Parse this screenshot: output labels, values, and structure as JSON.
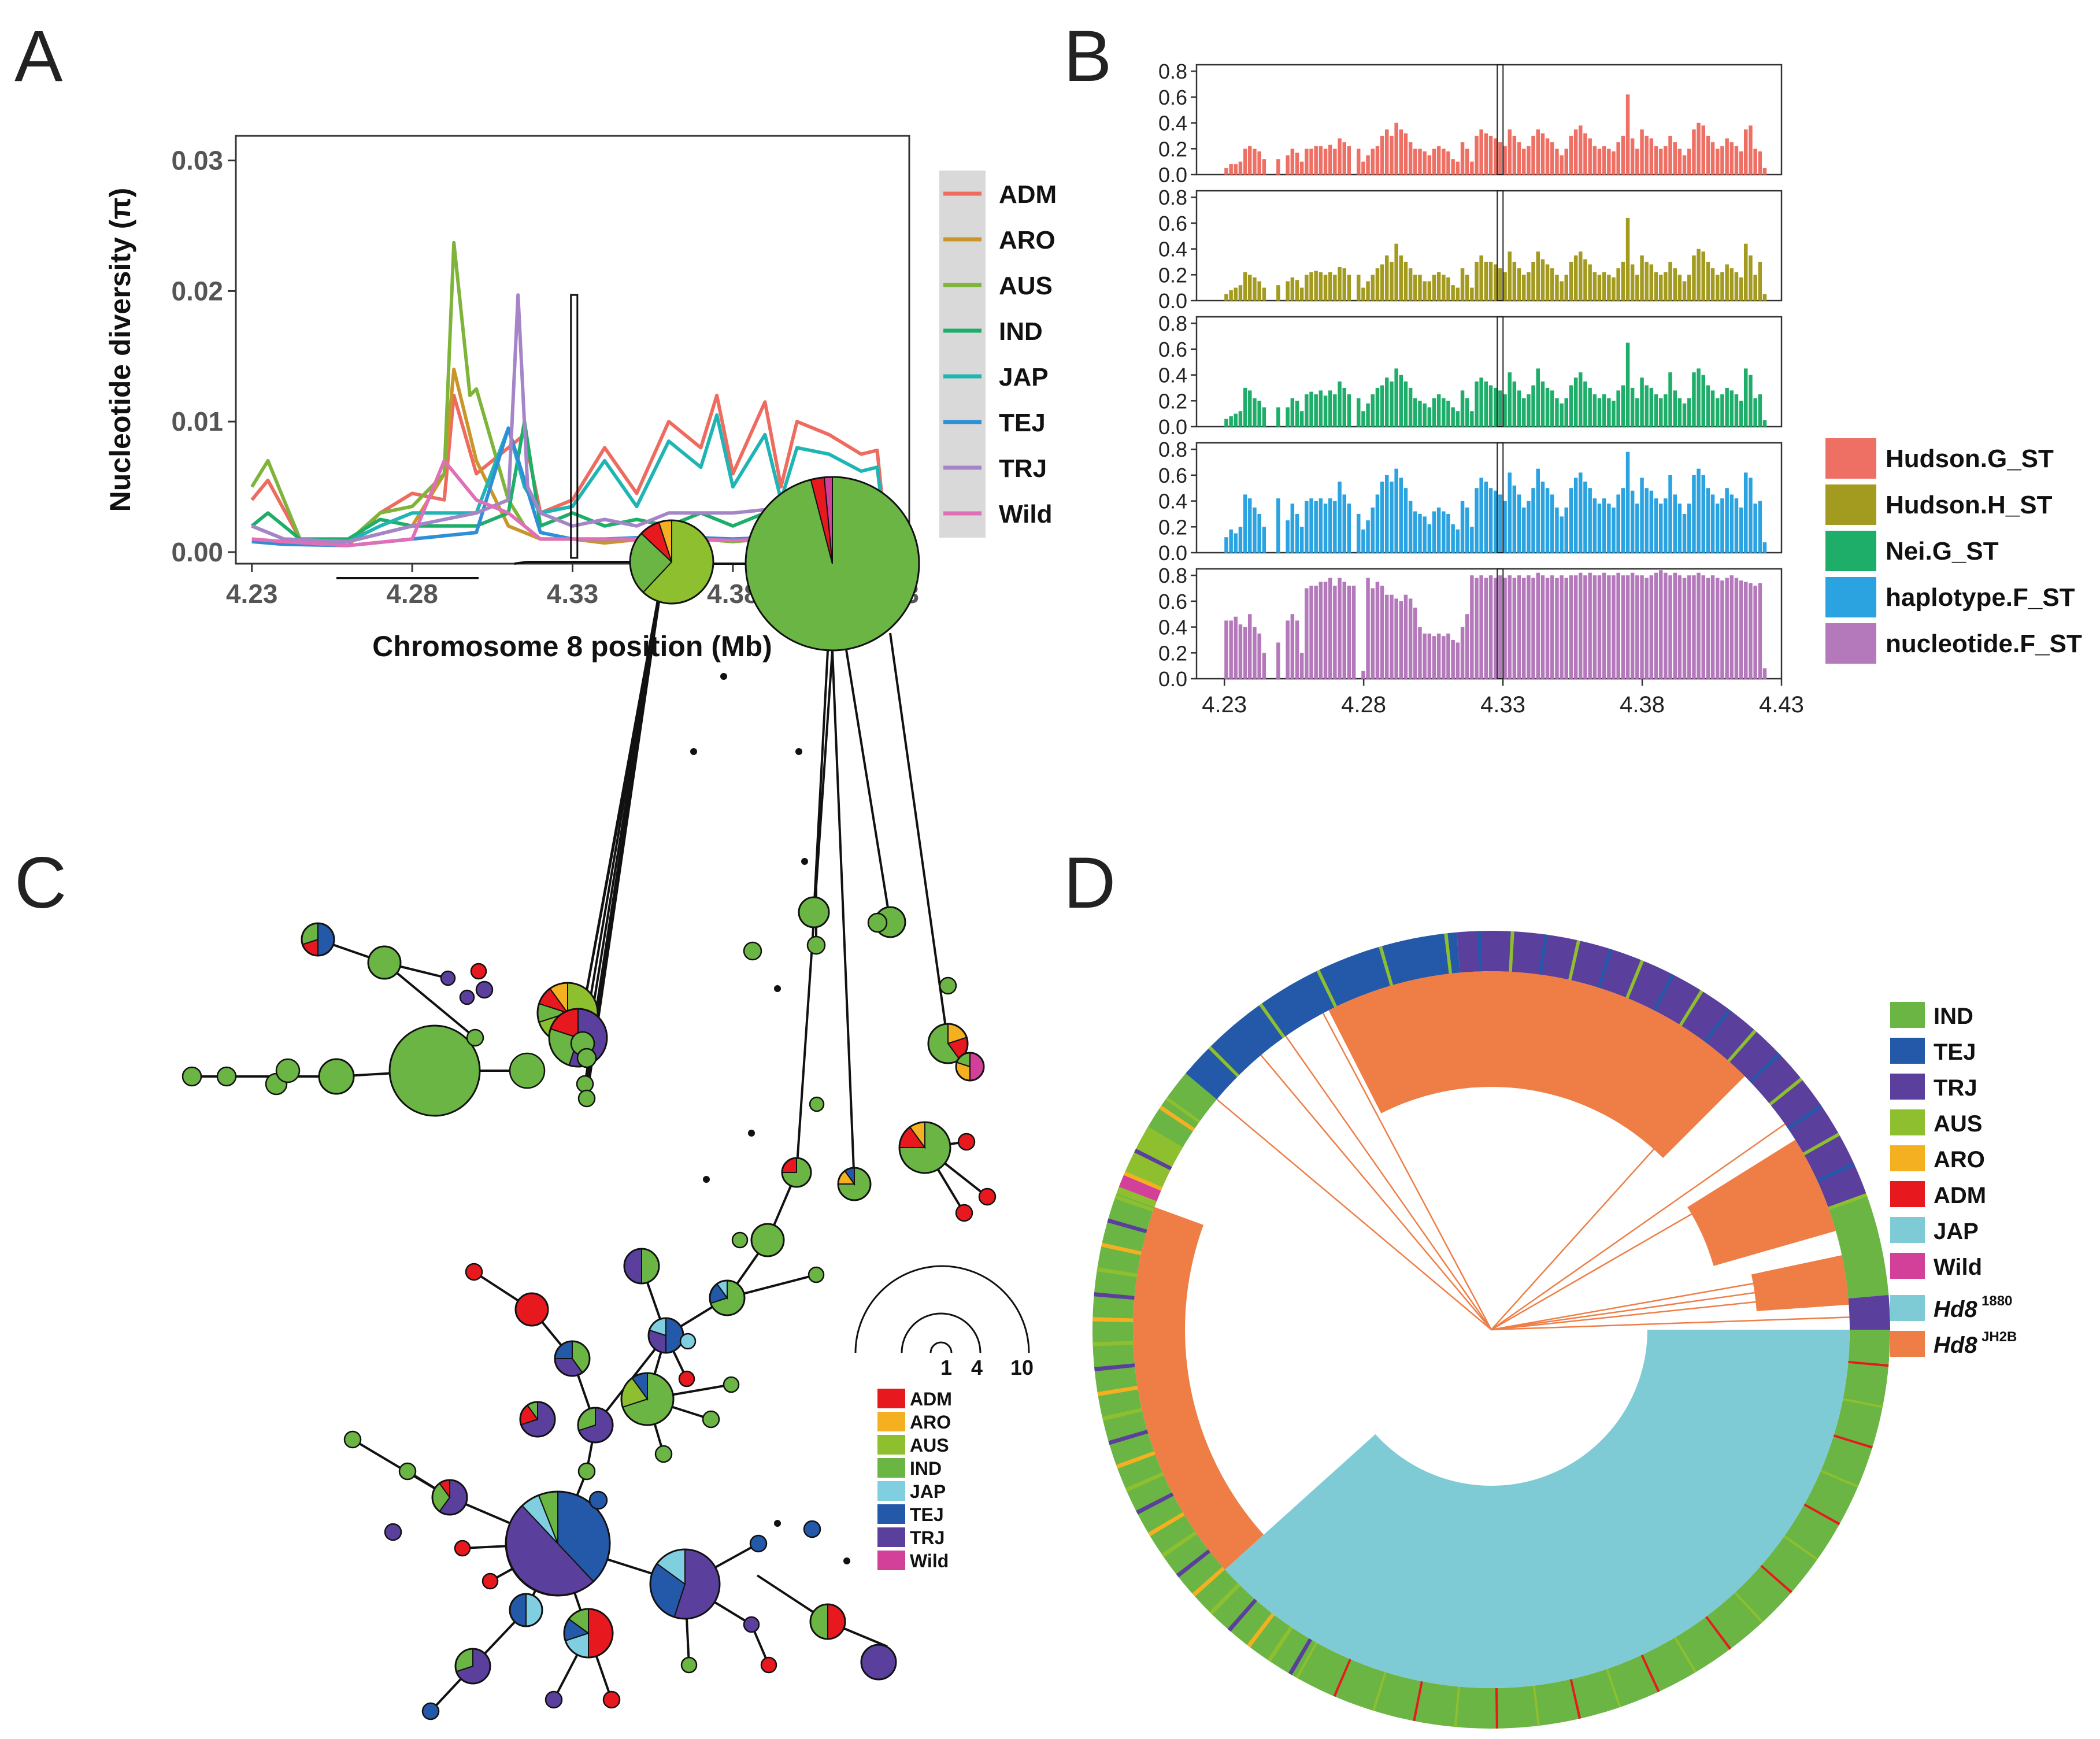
{
  "panels": {
    "a": {
      "letter": "A"
    },
    "b": {
      "letter": "B"
    },
    "c": {
      "letter": "C"
    },
    "d": {
      "letter": "D"
    }
  },
  "colors": {
    "ADM": "#ee6b5f",
    "ARO": "#c9962a",
    "AUS": "#7fb43a",
    "IND": "#1fae6a",
    "JAP": "#1fb5b5",
    "TEJ": "#2f8fd6",
    "TRJ": "#a585c8",
    "Wild": "#df6fb6",
    "netADM": "#e8191e",
    "netARO": "#f5b022",
    "netAUS": "#8dbf2f",
    "netIND": "#6bb544",
    "netJAP": "#7fcfe0",
    "netTEJ": "#2458a8",
    "netTRJ": "#5b3f9c",
    "netWild": "#d3409a",
    "cirIND": "#6bb544",
    "cirTEJ": "#2458a8",
    "cirTRJ": "#5b3f9c",
    "cirAUS": "#8dbf2f",
    "cirARO": "#f5b022",
    "cirADM": "#e8191e",
    "cirJAP": "#7ecbd6",
    "cirWild": "#d3409a",
    "hd1880": "#7ecbd6",
    "hdJH2B": "#ee7e45"
  },
  "chart_data": [
    {
      "id": "A",
      "type": "line",
      "ylabel": "Nucleotide diversity (π)",
      "xlabel": "Chromosome 8 position (Mb)",
      "x_ticks": [
        "4.23",
        "4.28",
        "4.33",
        "4.38",
        "4.43"
      ],
      "y_ticks": [
        "0.00",
        "0.01",
        "0.02",
        "0.03"
      ],
      "xlim": [
        4.23,
        4.43
      ],
      "ylim": [
        0,
        0.031
      ],
      "legend": [
        "ADM",
        "ARO",
        "AUS",
        "IND",
        "JAP",
        "TEJ",
        "TRJ",
        "Wild"
      ],
      "legend_position": "right",
      "highlight_region": [
        4.3295,
        4.3315,
        0.0197
      ],
      "series": [
        {
          "name": "ADM",
          "x": [
            4.23,
            4.235,
            4.245,
            4.26,
            4.27,
            4.28,
            4.29,
            4.293,
            4.3,
            4.31,
            4.315,
            4.32,
            4.33,
            4.34,
            4.35,
            4.36,
            4.37,
            4.375,
            4.38,
            4.39,
            4.395,
            4.4,
            4.41,
            4.42,
            4.425,
            4.428
          ],
          "y": [
            0.004,
            0.0055,
            0.001,
            0.0005,
            0.003,
            0.0045,
            0.004,
            0.012,
            0.006,
            0.008,
            0.009,
            0.003,
            0.004,
            0.008,
            0.0045,
            0.01,
            0.008,
            0.012,
            0.006,
            0.0115,
            0.005,
            0.01,
            0.009,
            0.0075,
            0.0078,
            0.0006
          ]
        },
        {
          "name": "ARO",
          "x": [
            4.23,
            4.24,
            4.26,
            4.28,
            4.29,
            4.293,
            4.3,
            4.31,
            4.32,
            4.33,
            4.34,
            4.36,
            4.38,
            4.4,
            4.42,
            4.428
          ],
          "y": [
            0.002,
            0.001,
            0.0008,
            0.002,
            0.006,
            0.014,
            0.007,
            0.002,
            0.001,
            0.001,
            0.0007,
            0.0012,
            0.0008,
            0.0014,
            0.001,
            0.0004
          ]
        },
        {
          "name": "AUS",
          "x": [
            4.23,
            4.235,
            4.245,
            4.26,
            4.27,
            4.28,
            4.29,
            4.293,
            4.298,
            4.3,
            4.31,
            4.315,
            4.32,
            4.33,
            4.34,
            4.36,
            4.38,
            4.4,
            4.42,
            4.428
          ],
          "y": [
            0.005,
            0.007,
            0.001,
            0.0008,
            0.003,
            0.0035,
            0.006,
            0.0237,
            0.012,
            0.0125,
            0.004,
            0.002,
            0.001,
            0.001,
            0.0009,
            0.0012,
            0.0008,
            0.0012,
            0.001,
            0.0003
          ]
        },
        {
          "name": "IND",
          "x": [
            4.23,
            4.235,
            4.245,
            4.26,
            4.27,
            4.28,
            4.29,
            4.3,
            4.31,
            4.315,
            4.32,
            4.33,
            4.34,
            4.35,
            4.36,
            4.37,
            4.38,
            4.39,
            4.4,
            4.41,
            4.42,
            4.428
          ],
          "y": [
            0.002,
            0.003,
            0.001,
            0.001,
            0.0025,
            0.002,
            0.002,
            0.002,
            0.003,
            0.01,
            0.002,
            0.003,
            0.002,
            0.0025,
            0.002,
            0.003,
            0.002,
            0.003,
            0.002,
            0.003,
            0.003,
            0.0005
          ]
        },
        {
          "name": "JAP",
          "x": [
            4.23,
            4.24,
            4.26,
            4.27,
            4.28,
            4.29,
            4.3,
            4.31,
            4.315,
            4.32,
            4.33,
            4.34,
            4.35,
            4.36,
            4.37,
            4.375,
            4.38,
            4.39,
            4.395,
            4.4,
            4.41,
            4.42,
            4.425,
            4.428
          ],
          "y": [
            0.002,
            0.001,
            0.0008,
            0.002,
            0.003,
            0.003,
            0.003,
            0.0095,
            0.005,
            0.003,
            0.0035,
            0.007,
            0.0035,
            0.0085,
            0.0065,
            0.0105,
            0.005,
            0.009,
            0.004,
            0.008,
            0.0075,
            0.0062,
            0.0065,
            0.0005
          ]
        },
        {
          "name": "TEJ",
          "x": [
            4.23,
            4.24,
            4.26,
            4.28,
            4.3,
            4.31,
            4.32,
            4.33,
            4.34,
            4.36,
            4.38,
            4.4,
            4.42,
            4.428
          ],
          "y": [
            0.0008,
            0.0006,
            0.0005,
            0.001,
            0.0015,
            0.0095,
            0.0015,
            0.001,
            0.001,
            0.0012,
            0.001,
            0.0012,
            0.001,
            0.0004
          ]
        },
        {
          "name": "TRJ",
          "x": [
            4.23,
            4.24,
            4.26,
            4.28,
            4.29,
            4.3,
            4.31,
            4.313,
            4.316,
            4.32,
            4.33,
            4.34,
            4.35,
            4.36,
            4.38,
            4.4,
            4.42,
            4.428
          ],
          "y": [
            0.002,
            0.001,
            0.0008,
            0.002,
            0.0025,
            0.003,
            0.004,
            0.0197,
            0.005,
            0.003,
            0.002,
            0.0025,
            0.002,
            0.003,
            0.003,
            0.0035,
            0.003,
            0.0006
          ]
        },
        {
          "name": "Wild",
          "x": [
            4.23,
            4.24,
            4.26,
            4.28,
            4.29,
            4.3,
            4.31,
            4.32,
            4.33,
            4.34,
            4.36,
            4.38,
            4.4,
            4.42,
            4.428
          ],
          "y": [
            0.001,
            0.0008,
            0.0005,
            0.001,
            0.007,
            0.004,
            0.003,
            0.001,
            0.001,
            0.001,
            0.001,
            0.0009,
            0.001,
            0.0012,
            0.0004
          ]
        }
      ]
    },
    {
      "id": "B",
      "type": "bar",
      "x_ticks": [
        "4.23",
        "4.28",
        "4.33",
        "4.38",
        "4.43"
      ],
      "y_ticks": [
        "0.0",
        "0.2",
        "0.4",
        "0.6",
        "0.8"
      ],
      "xlim": [
        4.22,
        4.43
      ],
      "ylim": [
        0,
        0.85
      ],
      "highlight_x": 4.329,
      "legend": [
        "Hudson.G_ST",
        "Hudson.H_ST",
        "Nei.G_ST",
        "haplotype.F_ST",
        "nucleotide.F_ST"
      ],
      "legend_position": "right",
      "series": [
        {
          "name": "Hudson.G_ST",
          "values": [
            0.05,
            0.08,
            0.08,
            0.1,
            0.2,
            0.22,
            0.2,
            0.18,
            0.12,
            0,
            0,
            0.12,
            0,
            0.15,
            0.2,
            0.17,
            0.1,
            0.2,
            0.2,
            0.22,
            0.22,
            0.2,
            0.23,
            0.2,
            0.28,
            0.25,
            0.22,
            0,
            0.2,
            0.1,
            0.15,
            0.2,
            0.22,
            0.3,
            0.35,
            0.3,
            0.4,
            0.35,
            0.32,
            0.25,
            0.2,
            0.2,
            0.18,
            0.15,
            0.2,
            0.22,
            0.2,
            0.18,
            0.12,
            0.1,
            0.25,
            0.2,
            0.1,
            0.3,
            0.35,
            0.32,
            0.3,
            0.28,
            0.25,
            0.22,
            0.35,
            0.3,
            0.25,
            0.2,
            0.22,
            0.3,
            0.35,
            0.32,
            0.28,
            0.25,
            0.2,
            0.15,
            0.2,
            0.3,
            0.35,
            0.38,
            0.32,
            0.28,
            0.22,
            0.2,
            0.22,
            0.2,
            0.18,
            0.25,
            0.3,
            0.62,
            0.28,
            0.2,
            0.35,
            0.3,
            0.28,
            0.22,
            0.2,
            0.22,
            0.3,
            0.25,
            0.2,
            0.15,
            0.2,
            0.35,
            0.4,
            0.38,
            0.3,
            0.25,
            0.2,
            0.22,
            0.28,
            0.25,
            0.22,
            0.18,
            0.35,
            0.38,
            0.2,
            0.18,
            0.05
          ]
        },
        {
          "name": "Hudson.H_ST",
          "values": [
            0.05,
            0.08,
            0.1,
            0.12,
            0.22,
            0.2,
            0.18,
            0.15,
            0.1,
            0,
            0,
            0.12,
            0,
            0.15,
            0.18,
            0.16,
            0.1,
            0.2,
            0.22,
            0.23,
            0.22,
            0.2,
            0.22,
            0.2,
            0.26,
            0.25,
            0.2,
            0,
            0.2,
            0.1,
            0.15,
            0.2,
            0.25,
            0.28,
            0.35,
            0.3,
            0.44,
            0.35,
            0.3,
            0.25,
            0.2,
            0.2,
            0.15,
            0.15,
            0.2,
            0.22,
            0.2,
            0.18,
            0.12,
            0.1,
            0.25,
            0.2,
            0.1,
            0.3,
            0.35,
            0.3,
            0.3,
            0.28,
            0.25,
            0.22,
            0.38,
            0.3,
            0.25,
            0.2,
            0.22,
            0.3,
            0.38,
            0.32,
            0.28,
            0.25,
            0.2,
            0.15,
            0.2,
            0.3,
            0.35,
            0.38,
            0.32,
            0.28,
            0.22,
            0.2,
            0.22,
            0.2,
            0.18,
            0.25,
            0.3,
            0.64,
            0.28,
            0.2,
            0.35,
            0.3,
            0.28,
            0.22,
            0.2,
            0.22,
            0.3,
            0.25,
            0.2,
            0.15,
            0.2,
            0.35,
            0.4,
            0.38,
            0.3,
            0.25,
            0.2,
            0.22,
            0.28,
            0.25,
            0.22,
            0.18,
            0.44,
            0.35,
            0.2,
            0.3,
            0.05
          ]
        },
        {
          "name": "Nei.G_ST",
          "values": [
            0.06,
            0.08,
            0.1,
            0.12,
            0.3,
            0.28,
            0.22,
            0.2,
            0.15,
            0,
            0,
            0.15,
            0,
            0.15,
            0.22,
            0.2,
            0.12,
            0.25,
            0.27,
            0.25,
            0.28,
            0.24,
            0.28,
            0.25,
            0.35,
            0.3,
            0.25,
            0,
            0.22,
            0.12,
            0.18,
            0.25,
            0.3,
            0.32,
            0.38,
            0.35,
            0.45,
            0.4,
            0.35,
            0.3,
            0.22,
            0.2,
            0.18,
            0.15,
            0.22,
            0.25,
            0.22,
            0.2,
            0.15,
            0.12,
            0.28,
            0.22,
            0.12,
            0.35,
            0.38,
            0.35,
            0.32,
            0.3,
            0.28,
            0.25,
            0.42,
            0.35,
            0.28,
            0.22,
            0.25,
            0.32,
            0.45,
            0.35,
            0.3,
            0.28,
            0.22,
            0.18,
            0.22,
            0.32,
            0.38,
            0.42,
            0.35,
            0.3,
            0.25,
            0.22,
            0.25,
            0.22,
            0.2,
            0.28,
            0.32,
            0.65,
            0.3,
            0.22,
            0.38,
            0.32,
            0.3,
            0.25,
            0.22,
            0.25,
            0.42,
            0.28,
            0.22,
            0.18,
            0.22,
            0.42,
            0.45,
            0.4,
            0.32,
            0.28,
            0.22,
            0.25,
            0.3,
            0.28,
            0.25,
            0.2,
            0.45,
            0.4,
            0.22,
            0.25,
            0.05
          ]
        },
        {
          "name": "haplotype.F_ST",
          "values": [
            0.12,
            0.18,
            0.15,
            0.2,
            0.45,
            0.42,
            0.35,
            0.3,
            0.2,
            0,
            0,
            0.42,
            0,
            0.25,
            0.38,
            0.3,
            0.2,
            0.4,
            0.42,
            0.4,
            0.42,
            0.38,
            0.42,
            0.4,
            0.55,
            0.45,
            0.38,
            0,
            0.3,
            0.18,
            0.25,
            0.35,
            0.45,
            0.55,
            0.6,
            0.55,
            0.65,
            0.58,
            0.5,
            0.4,
            0.32,
            0.3,
            0.28,
            0.22,
            0.32,
            0.35,
            0.32,
            0.3,
            0.22,
            0.18,
            0.4,
            0.35,
            0.2,
            0.5,
            0.58,
            0.55,
            0.5,
            0.48,
            0.45,
            0.4,
            0.62,
            0.52,
            0.45,
            0.35,
            0.4,
            0.5,
            0.65,
            0.55,
            0.5,
            0.45,
            0.35,
            0.28,
            0.35,
            0.5,
            0.58,
            0.62,
            0.55,
            0.5,
            0.42,
            0.38,
            0.42,
            0.38,
            0.35,
            0.45,
            0.5,
            0.78,
            0.48,
            0.38,
            0.58,
            0.5,
            0.48,
            0.42,
            0.38,
            0.42,
            0.6,
            0.45,
            0.38,
            0.3,
            0.38,
            0.6,
            0.65,
            0.6,
            0.5,
            0.45,
            0.38,
            0.42,
            0.5,
            0.45,
            0.42,
            0.35,
            0.62,
            0.58,
            0.38,
            0.4,
            0.08
          ]
        },
        {
          "name": "nucleotide.F_ST",
          "values": [
            0.45,
            0.45,
            0.48,
            0.42,
            0.4,
            0.5,
            0.4,
            0.35,
            0.2,
            0,
            0,
            0.28,
            0,
            0.45,
            0.5,
            0.45,
            0.2,
            0.7,
            0.72,
            0.72,
            0.75,
            0.75,
            0.78,
            0.72,
            0.78,
            0.75,
            0.72,
            0.72,
            0,
            0.06,
            0.78,
            0.7,
            0.75,
            0.72,
            0.65,
            0.65,
            0.62,
            0.6,
            0.65,
            0.62,
            0.55,
            0.4,
            0.35,
            0.35,
            0.33,
            0.35,
            0.33,
            0.35,
            0.3,
            0.28,
            0.4,
            0.5,
            0.8,
            0.78,
            0.8,
            0.78,
            0.8,
            0.78,
            0.8,
            0.78,
            0.8,
            0.78,
            0.8,
            0.78,
            0.8,
            0.78,
            0.82,
            0.8,
            0.78,
            0.8,
            0.78,
            0.8,
            0.78,
            0.8,
            0.8,
            0.82,
            0.8,
            0.82,
            0.8,
            0.8,
            0.82,
            0.8,
            0.8,
            0.82,
            0.8,
            0.8,
            0.82,
            0.8,
            0.8,
            0.78,
            0.8,
            0.82,
            0.84,
            0.82,
            0.8,
            0.82,
            0.8,
            0.78,
            0.8,
            0.8,
            0.82,
            0.8,
            0.78,
            0.8,
            0.78,
            0.76,
            0.78,
            0.8,
            0.78,
            0.76,
            0.75,
            0.74,
            0.72,
            0.74,
            0.08
          ]
        }
      ]
    }
  ],
  "network": {
    "size_legend": [
      "1",
      "4",
      "10"
    ],
    "group_legend": [
      "ADM",
      "ARO",
      "AUS",
      "IND",
      "JAP",
      "TEJ",
      "TRJ",
      "Wild"
    ]
  },
  "circular_tree": {
    "legend": [
      "IND",
      "TEJ",
      "TRJ",
      "AUS",
      "ARO",
      "ADM",
      "JAP",
      "Wild"
    ],
    "hd_legend": [
      {
        "base": "Hd8",
        "sup": "1880",
        "color": "#7ecbd6"
      },
      {
        "base": "Hd8",
        "sup": "JH2B",
        "color": "#ee7e45"
      }
    ]
  }
}
